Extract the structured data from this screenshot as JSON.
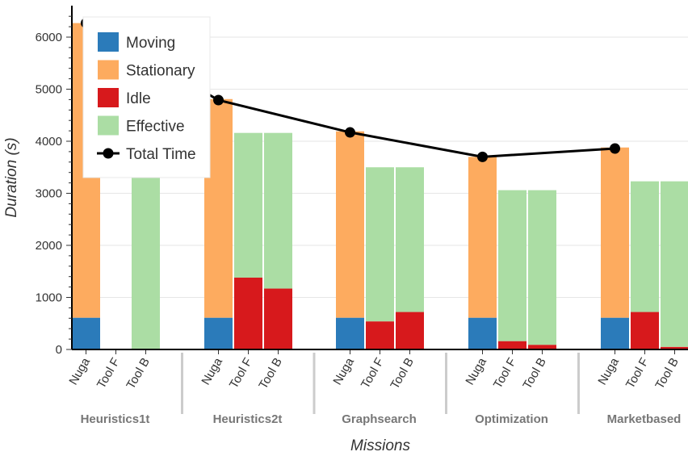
{
  "chart_data": {
    "type": "bar",
    "stacked": true,
    "xlabel": "Missions",
    "ylabel": "Duration (s)",
    "ylim": [
      0,
      6500
    ],
    "yticks": [
      0,
      1000,
      2000,
      3000,
      4000,
      5000,
      6000
    ],
    "grid": true,
    "legend_position": "top-left",
    "groups": [
      {
        "name": "Heuristics1t",
        "total_time": 6270,
        "bars": [
          {
            "label": "Nuga",
            "moving": 610,
            "stationary": 5660,
            "idle": 0,
            "effective": 0
          },
          {
            "label": "Tool F",
            "moving": 0,
            "stationary": 0,
            "idle": 10,
            "effective": 0
          },
          {
            "label": "Tool B",
            "moving": 0,
            "stationary": 0,
            "idle": 10,
            "effective": 5160
          }
        ]
      },
      {
        "name": "Heuristics2t",
        "total_time": 4790,
        "bars": [
          {
            "label": "Nuga",
            "moving": 610,
            "stationary": 4200,
            "idle": 0,
            "effective": 0
          },
          {
            "label": "Tool F",
            "moving": 0,
            "stationary": 0,
            "idle": 1380,
            "effective": 2780
          },
          {
            "label": "Tool B",
            "moving": 0,
            "stationary": 0,
            "idle": 1170,
            "effective": 2990
          }
        ]
      },
      {
        "name": "Graphsearch",
        "total_time": 4170,
        "bars": [
          {
            "label": "Nuga",
            "moving": 610,
            "stationary": 3580,
            "idle": 0,
            "effective": 0
          },
          {
            "label": "Tool F",
            "moving": 0,
            "stationary": 0,
            "idle": 540,
            "effective": 2960
          },
          {
            "label": "Tool B",
            "moving": 0,
            "stationary": 0,
            "idle": 720,
            "effective": 2780
          }
        ]
      },
      {
        "name": "Optimization",
        "total_time": 3700,
        "bars": [
          {
            "label": "Nuga",
            "moving": 610,
            "stationary": 3090,
            "idle": 0,
            "effective": 0
          },
          {
            "label": "Tool F",
            "moving": 0,
            "stationary": 0,
            "idle": 160,
            "effective": 2900
          },
          {
            "label": "Tool B",
            "moving": 0,
            "stationary": 0,
            "idle": 90,
            "effective": 2970
          }
        ]
      },
      {
        "name": "Marketbased",
        "total_time": 3860,
        "bars": [
          {
            "label": "Nuga",
            "moving": 610,
            "stationary": 3270,
            "idle": 0,
            "effective": 0
          },
          {
            "label": "Tool F",
            "moving": 0,
            "stationary": 0,
            "idle": 720,
            "effective": 2510
          },
          {
            "label": "Tool B",
            "moving": 0,
            "stationary": 0,
            "idle": 50,
            "effective": 3180
          }
        ]
      }
    ],
    "legend": [
      {
        "key": "moving",
        "name": "Moving",
        "color": "#2b7bba",
        "kind": "box"
      },
      {
        "key": "stationary",
        "name": "Stationary",
        "color": "#fdab5f",
        "kind": "box"
      },
      {
        "key": "idle",
        "name": "Idle",
        "color": "#d7191c",
        "kind": "box"
      },
      {
        "key": "effective",
        "name": "Effective",
        "color": "#abdda4",
        "kind": "box"
      },
      {
        "key": "total_time",
        "name": "Total Time",
        "color": "#000000",
        "kind": "line"
      }
    ]
  }
}
